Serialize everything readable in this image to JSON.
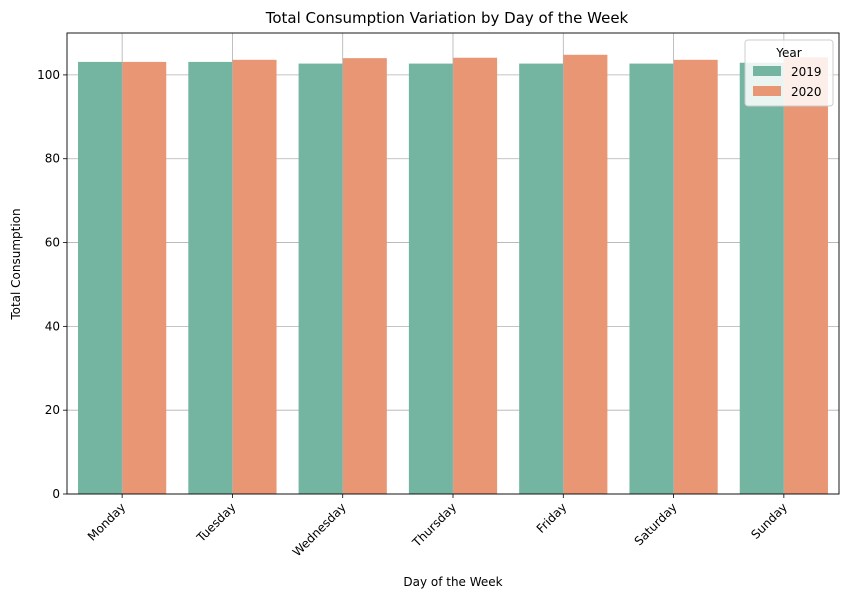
{
  "chart_data": {
    "type": "bar",
    "title": "Total Consumption Variation by Day of the Week",
    "xlabel": "Day of the Week",
    "ylabel": "Total Consumption",
    "categories": [
      "Monday",
      "Tuesday",
      "Wednesday",
      "Thursday",
      "Friday",
      "Saturday",
      "Sunday"
    ],
    "series": [
      {
        "name": "2019",
        "color": "#73b5a1",
        "values": [
          103.1,
          103.1,
          102.7,
          102.7,
          102.7,
          102.7,
          102.9
        ]
      },
      {
        "name": "2020",
        "color": "#e99674",
        "values": [
          103.1,
          103.6,
          104.0,
          104.1,
          104.8,
          103.6,
          104.2
        ]
      }
    ],
    "ylim": [
      0,
      110
    ],
    "yticks": [
      0,
      20,
      40,
      60,
      80,
      100
    ],
    "grid": true,
    "legend": {
      "title": "Year",
      "placement": "top-right"
    }
  }
}
